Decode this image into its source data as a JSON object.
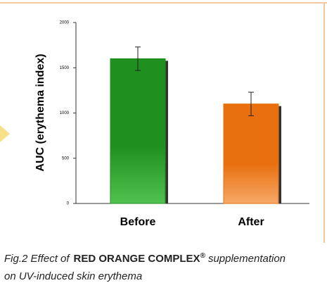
{
  "chart_data": {
    "type": "bar",
    "y_label": "AUC (erythema index)",
    "categories": [
      "Before",
      "After"
    ],
    "values": [
      1600,
      1100
    ],
    "errors": [
      130,
      130
    ],
    "colors": [
      "#1f8f1f",
      "#e8700f"
    ],
    "ylim": [
      0,
      2000
    ],
    "yticks": [
      0,
      500,
      1000,
      1500,
      2000
    ]
  },
  "caption": {
    "line1": [
      "Fig.2 Effect of",
      "RED ORANGE COMPLEX",
      "®",
      "supplementation"
    ],
    "line2": "on UV-induced skin erythema"
  }
}
